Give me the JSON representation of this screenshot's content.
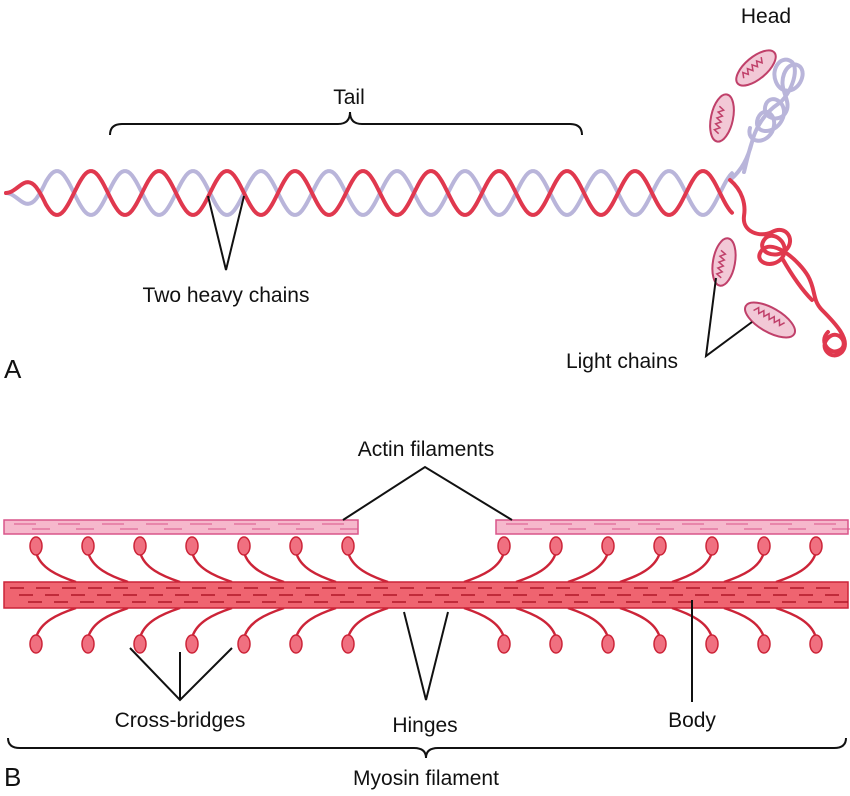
{
  "panel_a": {
    "panel_label": "A",
    "labels": {
      "tail": "Tail",
      "head": "Head",
      "two_heavy_chains": "Two heavy chains",
      "light_chains": "Light chains"
    }
  },
  "panel_b": {
    "panel_label": "B",
    "labels": {
      "actin_filaments": "Actin filaments",
      "cross_bridges": "Cross-bridges",
      "hinges": "Hinges",
      "body": "Body",
      "myosin_filament": "Myosin filament"
    }
  },
  "colors": {
    "heavy_chain_red": "#e0384e",
    "heavy_chain_lavender": "#b9b5da",
    "light_chain_fill": "#f2c8d6",
    "light_chain_stroke": "#c0406a",
    "actin_fill": "#f6b8cc",
    "actin_stroke": "#d9558a",
    "myosin_fill": "#ef6470",
    "myosin_dash": "#b01828",
    "crossbridge_head": "#f07080",
    "crossbridge_stroke": "#cc2438"
  }
}
